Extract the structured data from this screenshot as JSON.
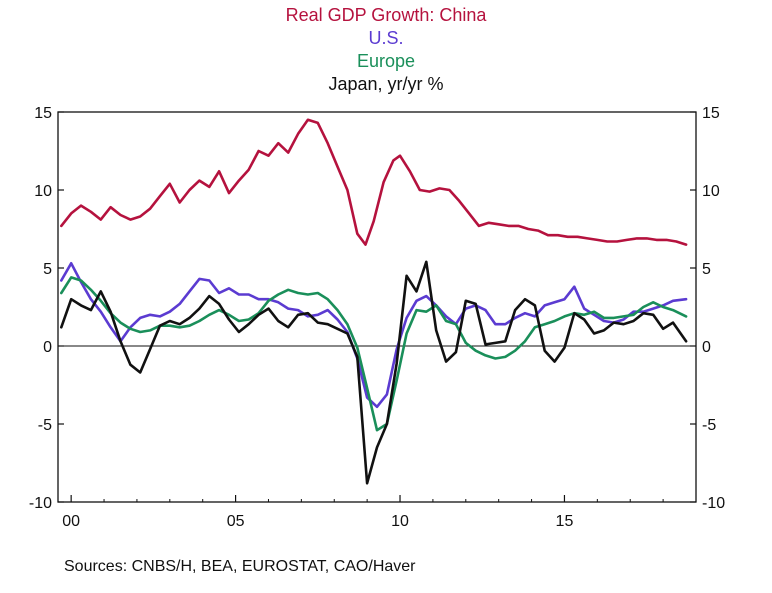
{
  "chart_data": {
    "type": "line",
    "title_lines": [
      "Real GDP Growth: China",
      "U.S.",
      "Europe",
      "Japan, yr/yr %"
    ],
    "ylim": [
      -10,
      15
    ],
    "y_ticks": [
      15,
      10,
      5,
      0,
      -5,
      -10
    ],
    "y_tick_labels": [
      "15",
      "10",
      "5",
      "0",
      "-5",
      "-10"
    ],
    "x_tick_labels": [
      "00",
      "05",
      "10",
      "15"
    ],
    "x_tick_values": [
      2000,
      2005,
      2010,
      2015
    ],
    "xlim": [
      1999.6,
      2019.0
    ],
    "reference_line": 0,
    "series": [
      {
        "name": "China",
        "color": "#b5123e",
        "x": [
          1999.7,
          2000.0,
          2000.3,
          2000.6,
          2000.9,
          2001.2,
          2001.5,
          2001.8,
          2002.1,
          2002.4,
          2002.7,
          2003.0,
          2003.3,
          2003.6,
          2003.9,
          2004.2,
          2004.5,
          2004.8,
          2005.1,
          2005.4,
          2005.7,
          2006.0,
          2006.3,
          2006.6,
          2006.9,
          2007.2,
          2007.5,
          2007.8,
          2008.1,
          2008.4,
          2008.7,
          2008.95,
          2009.2,
          2009.5,
          2009.8,
          2010.0,
          2010.3,
          2010.6,
          2010.9,
          2011.2,
          2011.5,
          2011.8,
          2012.1,
          2012.4,
          2012.7,
          2013.0,
          2013.3,
          2013.6,
          2013.9,
          2014.2,
          2014.5,
          2014.8,
          2015.1,
          2015.4,
          2015.7,
          2016.0,
          2016.3,
          2016.6,
          2016.9,
          2017.2,
          2017.5,
          2017.8,
          2018.1,
          2018.4,
          2018.7
        ],
        "values": [
          7.7,
          8.5,
          9.0,
          8.6,
          8.1,
          8.9,
          8.4,
          8.1,
          8.3,
          8.8,
          9.6,
          10.4,
          9.2,
          10.0,
          10.6,
          10.2,
          11.2,
          9.8,
          10.6,
          11.3,
          12.5,
          12.2,
          13.0,
          12.4,
          13.6,
          14.5,
          14.3,
          13.0,
          11.5,
          10.0,
          7.2,
          6.5,
          8.0,
          10.5,
          11.9,
          12.2,
          11.2,
          10.0,
          9.9,
          10.1,
          10.0,
          9.3,
          8.5,
          7.7,
          7.9,
          7.8,
          7.7,
          7.7,
          7.5,
          7.4,
          7.1,
          7.1,
          7.0,
          7.0,
          6.9,
          6.8,
          6.7,
          6.7,
          6.8,
          6.9,
          6.9,
          6.8,
          6.8,
          6.7,
          6.5
        ]
      },
      {
        "name": "U.S.",
        "color": "#5b3bd1",
        "x": [
          1999.7,
          2000.0,
          2000.3,
          2000.6,
          2000.9,
          2001.2,
          2001.5,
          2001.8,
          2002.1,
          2002.4,
          2002.7,
          2003.0,
          2003.3,
          2003.6,
          2003.9,
          2004.2,
          2004.5,
          2004.8,
          2005.1,
          2005.4,
          2005.7,
          2006.0,
          2006.3,
          2006.6,
          2006.9,
          2007.2,
          2007.5,
          2007.8,
          2008.1,
          2008.4,
          2008.7,
          2009.0,
          2009.3,
          2009.6,
          2009.9,
          2010.2,
          2010.5,
          2010.8,
          2011.1,
          2011.4,
          2011.7,
          2012.0,
          2012.3,
          2012.6,
          2012.9,
          2013.2,
          2013.5,
          2013.8,
          2014.1,
          2014.4,
          2014.7,
          2015.0,
          2015.3,
          2015.6,
          2015.9,
          2016.2,
          2016.5,
          2016.8,
          2017.1,
          2017.4,
          2017.7,
          2018.0,
          2018.3,
          2018.7
        ],
        "values": [
          4.2,
          5.3,
          4.1,
          3.0,
          2.2,
          1.2,
          0.3,
          1.2,
          1.8,
          2.0,
          1.9,
          2.2,
          2.7,
          3.5,
          4.3,
          4.2,
          3.4,
          3.7,
          3.3,
          3.3,
          3.0,
          3.0,
          2.8,
          2.4,
          2.3,
          1.9,
          2.0,
          2.3,
          1.7,
          0.9,
          -0.8,
          -3.3,
          -3.9,
          -3.1,
          -0.2,
          1.8,
          2.9,
          3.2,
          2.6,
          1.9,
          1.4,
          2.4,
          2.6,
          2.3,
          1.4,
          1.4,
          1.8,
          2.1,
          1.9,
          2.6,
          2.8,
          3.0,
          3.8,
          2.4,
          2.0,
          1.6,
          1.5,
          1.7,
          2.2,
          2.2,
          2.4,
          2.6,
          2.9,
          3.0
        ]
      },
      {
        "name": "Europe",
        "color": "#1a8f5a",
        "x": [
          1999.7,
          2000.0,
          2000.3,
          2000.6,
          2000.9,
          2001.2,
          2001.5,
          2001.8,
          2002.1,
          2002.4,
          2002.7,
          2003.0,
          2003.3,
          2003.6,
          2003.9,
          2004.2,
          2004.5,
          2004.8,
          2005.1,
          2005.4,
          2005.7,
          2006.0,
          2006.3,
          2006.6,
          2006.9,
          2007.2,
          2007.5,
          2007.8,
          2008.1,
          2008.4,
          2008.7,
          2009.0,
          2009.3,
          2009.6,
          2009.9,
          2010.2,
          2010.5,
          2010.8,
          2011.1,
          2011.4,
          2011.7,
          2012.0,
          2012.3,
          2012.6,
          2012.9,
          2013.2,
          2013.5,
          2013.8,
          2014.1,
          2014.4,
          2014.7,
          2015.0,
          2015.3,
          2015.6,
          2015.9,
          2016.2,
          2016.5,
          2016.8,
          2017.1,
          2017.4,
          2017.7,
          2018.0,
          2018.3,
          2018.7
        ],
        "values": [
          3.4,
          4.4,
          4.2,
          3.6,
          2.9,
          2.1,
          1.5,
          1.1,
          0.9,
          1.0,
          1.3,
          1.3,
          1.2,
          1.3,
          1.6,
          2.0,
          2.3,
          2.0,
          1.6,
          1.7,
          2.1,
          2.9,
          3.3,
          3.6,
          3.4,
          3.3,
          3.4,
          3.0,
          2.3,
          1.4,
          -0.1,
          -2.7,
          -5.4,
          -5.0,
          -2.2,
          0.8,
          2.3,
          2.2,
          2.6,
          1.6,
          1.4,
          0.2,
          -0.3,
          -0.6,
          -0.8,
          -0.7,
          -0.3,
          0.3,
          1.2,
          1.4,
          1.6,
          1.9,
          2.1,
          2.0,
          2.2,
          1.8,
          1.8,
          1.9,
          2.0,
          2.5,
          2.8,
          2.5,
          2.3,
          1.9
        ]
      },
      {
        "name": "Japan",
        "color": "#111111",
        "x": [
          1999.7,
          2000.0,
          2000.3,
          2000.6,
          2000.9,
          2001.2,
          2001.5,
          2001.8,
          2002.1,
          2002.4,
          2002.7,
          2003.0,
          2003.3,
          2003.6,
          2003.9,
          2004.2,
          2004.5,
          2004.8,
          2005.1,
          2005.4,
          2005.7,
          2006.0,
          2006.3,
          2006.6,
          2006.9,
          2007.2,
          2007.5,
          2007.8,
          2008.1,
          2008.4,
          2008.7,
          2009.0,
          2009.3,
          2009.6,
          2009.9,
          2010.2,
          2010.5,
          2010.8,
          2011.1,
          2011.4,
          2011.7,
          2012.0,
          2012.3,
          2012.6,
          2012.9,
          2013.2,
          2013.5,
          2013.8,
          2014.1,
          2014.4,
          2014.7,
          2015.0,
          2015.3,
          2015.6,
          2015.9,
          2016.2,
          2016.5,
          2016.8,
          2017.1,
          2017.4,
          2017.7,
          2018.0,
          2018.3,
          2018.7
        ],
        "values": [
          1.2,
          3.0,
          2.6,
          2.3,
          3.5,
          2.2,
          0.3,
          -1.2,
          -1.7,
          -0.2,
          1.3,
          1.6,
          1.4,
          1.8,
          2.4,
          3.2,
          2.7,
          1.7,
          0.9,
          1.4,
          2.0,
          2.4,
          1.6,
          1.2,
          2.0,
          2.1,
          1.5,
          1.4,
          1.1,
          0.8,
          -0.7,
          -8.8,
          -6.5,
          -5.0,
          -1.1,
          4.5,
          3.5,
          5.4,
          1.0,
          -1.0,
          -0.4,
          2.9,
          2.7,
          0.1,
          0.2,
          0.3,
          2.3,
          3.0,
          2.6,
          -0.3,
          -1.0,
          -0.1,
          2.1,
          1.7,
          0.8,
          1.0,
          1.5,
          1.4,
          1.6,
          2.1,
          2.0,
          1.1,
          1.5,
          0.3
        ]
      }
    ]
  },
  "source_text": "Sources:  CNBS/H, BEA, EUROSTAT, CAO/Haver"
}
